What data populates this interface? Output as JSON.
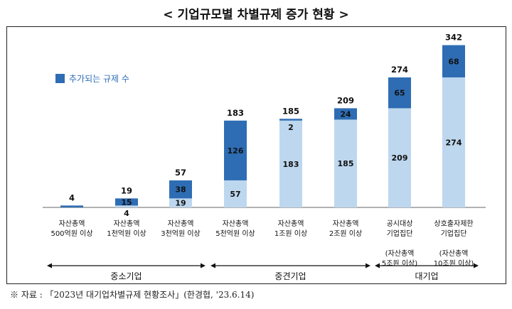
{
  "title": "< 기업규모별 차별규제 증가 현황 >",
  "source": "※ 자료 : 「2023년 대기업차별규제 현황조사」(한경협, '23.6.14)",
  "chart_data": {
    "type": "bar",
    "stacked": true,
    "categories": [
      [
        "자산총액",
        "500억원 이상"
      ],
      [
        "자산총액",
        "1천억원 이상"
      ],
      [
        "자산총액",
        "3천억원 이상"
      ],
      [
        "자산총액",
        "5천억원 이상"
      ],
      [
        "자산총액",
        "1조원 이상"
      ],
      [
        "자산총액",
        "2조원 이상"
      ],
      [
        "공시대상",
        "기업집단",
        "",
        "(자산총액",
        "5조원 이상)"
      ],
      [
        "상호출자제한",
        "기업집단",
        "",
        "(자산총액",
        "10조원 이상)"
      ]
    ],
    "series": [
      {
        "name": "",
        "color": "#bdd7ee",
        "values": [
          0,
          4,
          19,
          57,
          183,
          185,
          209,
          274
        ]
      },
      {
        "name": "추가되는 규제 수",
        "color": "#2e6db4",
        "values": [
          4,
          15,
          38,
          126,
          2,
          24,
          65,
          68
        ]
      }
    ],
    "totals": [
      4,
      19,
      57,
      183,
      185,
      209,
      274,
      342
    ],
    "groups": [
      {
        "label": "중소기업",
        "from": 0,
        "to": 2
      },
      {
        "label": "중견기업",
        "from": 3,
        "to": 5
      },
      {
        "label": "대기업",
        "from": 6,
        "to": 7
      }
    ],
    "legend_position": "top-left",
    "grid": false
  }
}
